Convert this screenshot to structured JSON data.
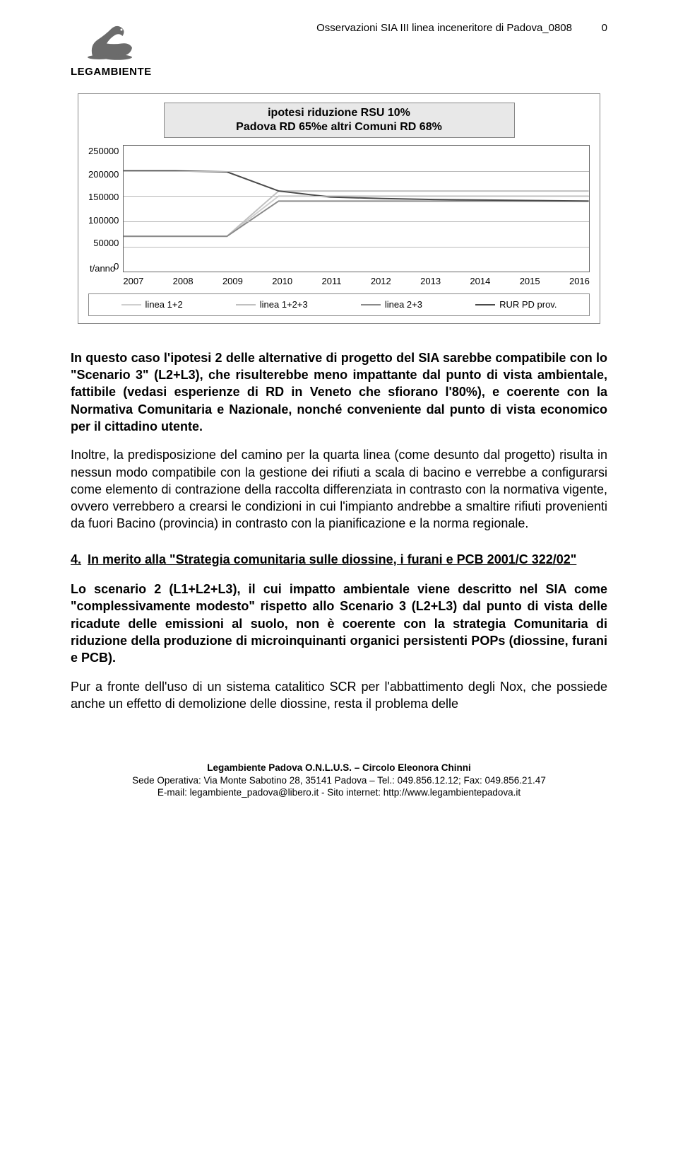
{
  "header": {
    "logo_text": "LEGAMBIENTE",
    "doc_title": "Osservazioni SIA III linea inceneritore di Padova_0808",
    "page_number": "0"
  },
  "chart": {
    "type": "line",
    "title_line1": "ipotesi riduzione RSU 10%",
    "title_line2": "Padova RD 65%e altri Comuni RD 68%",
    "ylim": [
      0,
      250000
    ],
    "ytick_step": 50000,
    "y_ticks": [
      "250000",
      "200000",
      "150000",
      "100000",
      "50000",
      "0"
    ],
    "y_unit": "t/anno",
    "x_categories": [
      "2007",
      "2008",
      "2009",
      "2010",
      "2011",
      "2012",
      "2013",
      "2014",
      "2015",
      "2016"
    ],
    "title_fontsize": 16,
    "label_fontsize": 13,
    "background_color": "#ffffff",
    "grid_color": "#bbbbbb",
    "border_color": "#888888",
    "line_width": 2,
    "series": [
      {
        "name": "linea 1+2",
        "color": "#cfcfcf",
        "values": [
          70000,
          70000,
          70000,
          150000,
          150000,
          150000,
          150000,
          150000,
          150000,
          150000
        ]
      },
      {
        "name": "linea 1+2+3",
        "color": "#c0c0c0",
        "values": [
          70000,
          70000,
          70000,
          160000,
          160000,
          160000,
          160000,
          160000,
          160000,
          160000
        ]
      },
      {
        "name": "linea 2+3",
        "color": "#8a8a8a",
        "values": [
          70000,
          70000,
          70000,
          140000,
          140000,
          140000,
          140000,
          140000,
          140000,
          140000
        ]
      },
      {
        "name": "RUR PD prov.",
        "color": "#4a4a4a",
        "values": [
          200000,
          200000,
          198000,
          160000,
          148000,
          145000,
          143000,
          142000,
          141000,
          140000
        ]
      }
    ]
  },
  "body": {
    "p1": "In questo caso l'ipotesi 2 delle alternative di progetto del SIA sarebbe compatibile con lo \"Scenario 3\" (L2+L3), che risulterebbe meno impattante dal punto di vista ambientale, fattibile (vedasi esperienze di RD in Veneto che sfiorano l'80%), e coerente con la Normativa Comunitaria e Nazionale, nonché conveniente dal punto di vista economico per il cittadino utente.",
    "p2": "Inoltre, la predisposizione del camino per la quarta linea (come desunto dal progetto) risulta in nessun modo compatibile con la gestione dei rifiuti a scala di bacino e verrebbe a configurarsi come elemento di contrazione della raccolta differenziata in contrasto con la normativa vigente, ovvero verrebbero a crearsi le condizioni in cui l'impianto andrebbe a smaltire rifiuti provenienti da fuori Bacino (provincia) in contrasto con la pianificazione e la norma regionale.",
    "section4_num": "4.",
    "section4_title": "In merito alla \"Strategia comunitaria sulle diossine, i furani e PCB 2001/C 322/02\"",
    "p3": "Lo scenario 2 (L1+L2+L3), il cui impatto ambientale viene descritto nel SIA come \"complessivamente modesto\" rispetto allo Scenario 3 (L2+L3) dal punto di vista delle ricadute delle emissioni al suolo, non è coerente con la strategia Comunitaria di riduzione della produzione di microinquinanti organici persistenti POPs (diossine, furani e PCB).",
    "p4": "Pur a fronte dell'uso di un sistema catalitico SCR per l'abbattimento degli Nox, che possiede anche un effetto di demolizione delle diossine, resta il problema delle"
  },
  "footer": {
    "line1": "Legambiente Padova O.N.L.U.S. – Circolo Eleonora Chinni",
    "line2": "Sede Operativa: Via Monte Sabotino 28, 35141 Padova – Tel.: 049.856.12.12; Fax: 049.856.21.47",
    "line3": "E-mail: legambiente_padova@libero.it - Sito internet: http://www.legambientepadova.it"
  }
}
